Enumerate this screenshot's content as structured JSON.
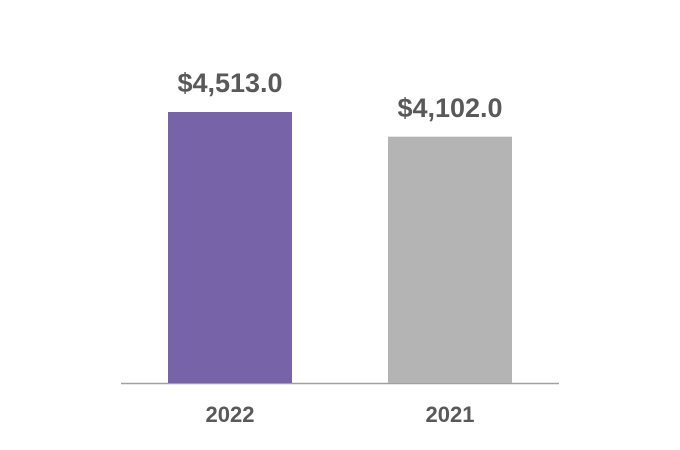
{
  "chart_data": {
    "type": "bar",
    "categories": [
      "2022",
      "2021"
    ],
    "values": [
      4513.0,
      4102.0
    ],
    "value_labels": [
      "$4,513.0",
      "$4,102.0"
    ],
    "colors": [
      "#7764a8",
      "#b4b4b4"
    ]
  }
}
